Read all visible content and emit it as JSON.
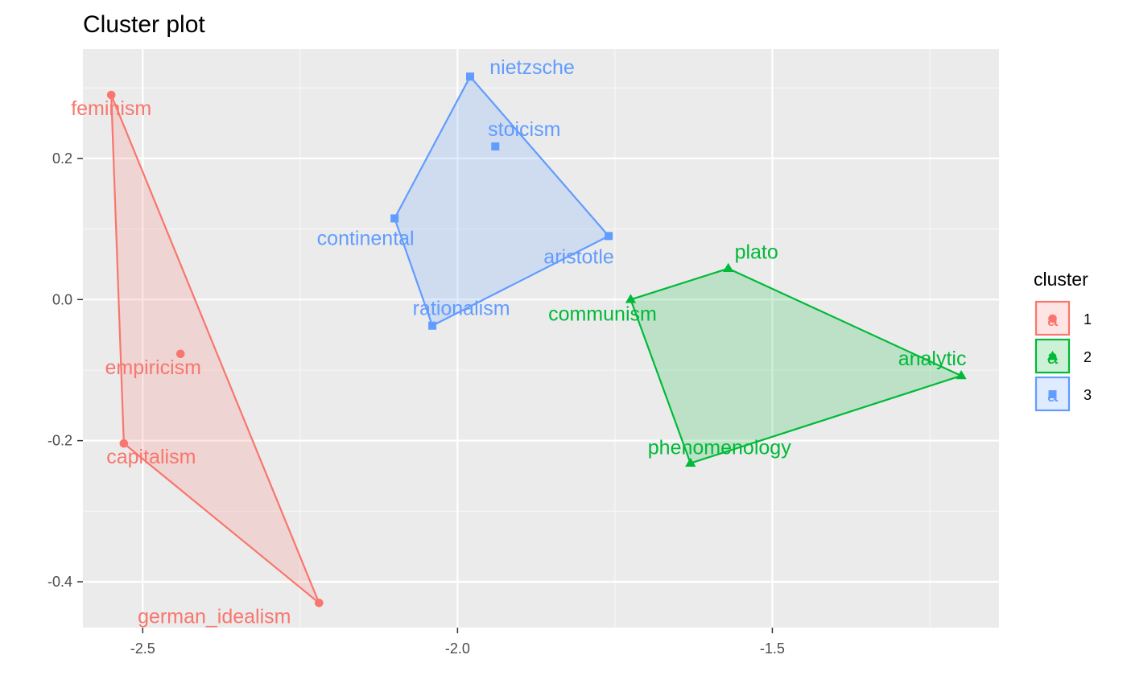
{
  "chart_data": {
    "type": "scatter",
    "title": "Cluster plot",
    "xlabel": "",
    "ylabel": "",
    "xlim": [
      -2.595,
      -1.14
    ],
    "ylim": [
      -0.465,
      0.355
    ],
    "x_ticks": [
      -2.5,
      -2.0,
      -1.5
    ],
    "x_tick_labels": [
      "-2.5",
      "-2.0",
      "-1.5"
    ],
    "y_ticks": [
      -0.4,
      -0.2,
      0.0,
      0.2
    ],
    "y_tick_labels": [
      "-0.4",
      "-0.2",
      "0.0",
      "0.2"
    ],
    "grid": true,
    "legend": {
      "title": "cluster",
      "placement": "right",
      "entries": [
        "1",
        "2",
        "3"
      ]
    },
    "series": [
      {
        "name": "1",
        "color": "#F8766D",
        "marker": "circle",
        "hull": [
          "feminism",
          "capitalism",
          "german_idealism"
        ],
        "points": [
          {
            "label": "feminism",
            "x": -2.55,
            "y": 0.29
          },
          {
            "label": "empiricism",
            "x": -2.44,
            "y": -0.077
          },
          {
            "label": "capitalism",
            "x": -2.53,
            "y": -0.204
          },
          {
            "label": "german_idealism",
            "x": -2.22,
            "y": -0.43
          }
        ]
      },
      {
        "name": "2",
        "color": "#00BA38",
        "marker": "triangle",
        "hull": [
          "communism",
          "plato",
          "analytic",
          "phenomenology"
        ],
        "points": [
          {
            "label": "plato",
            "x": -1.57,
            "y": 0.044
          },
          {
            "label": "communism",
            "x": -1.725,
            "y": 0.0
          },
          {
            "label": "analytic",
            "x": -1.2,
            "y": -0.108
          },
          {
            "label": "phenomenology",
            "x": -1.63,
            "y": -0.232
          }
        ]
      },
      {
        "name": "3",
        "color": "#619CFF",
        "marker": "square",
        "hull": [
          "nietzsche",
          "aristotle",
          "rationalism",
          "continental"
        ],
        "points": [
          {
            "label": "nietzsche",
            "x": -1.98,
            "y": 0.316
          },
          {
            "label": "stoicism",
            "x": -1.94,
            "y": 0.217
          },
          {
            "label": "continental",
            "x": -2.1,
            "y": 0.115
          },
          {
            "label": "aristotle",
            "x": -1.76,
            "y": 0.09
          },
          {
            "label": "rationalism",
            "x": -2.04,
            "y": -0.037
          }
        ]
      }
    ]
  }
}
